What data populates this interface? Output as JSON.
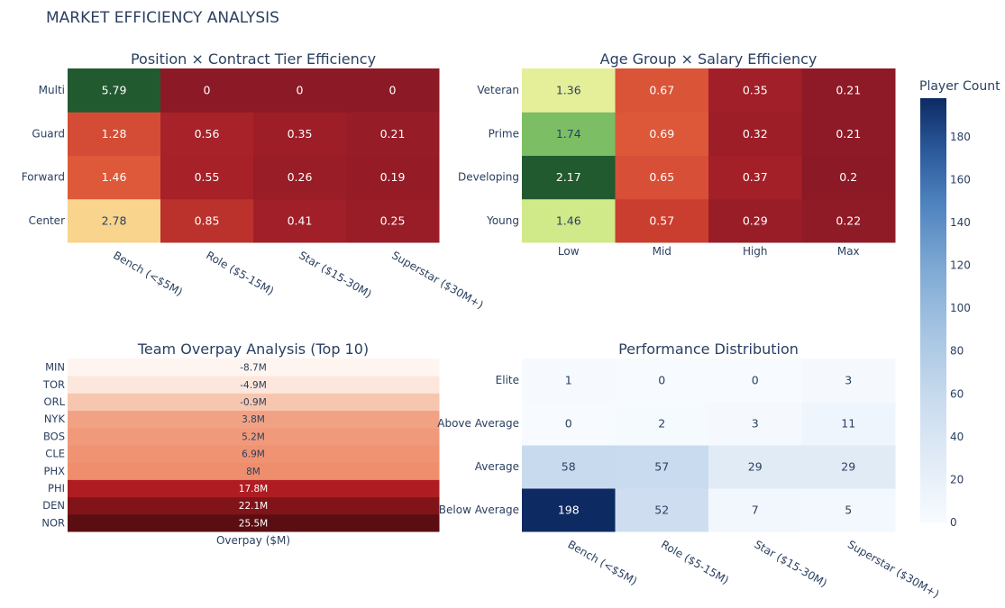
{
  "page": {
    "title": "MARKET EFFICIENCY ANALYSIS"
  },
  "chart_data": [
    {
      "id": "position_tier",
      "type": "heatmap",
      "title": "Position × Contract Tier Efficiency",
      "x": [
        "Bench (<$5M)",
        "Role ($5-15M)",
        "Star ($15-30M)",
        "Superstar ($30M+)"
      ],
      "y": [
        "Center",
        "Forward",
        "Guard",
        "Multi"
      ],
      "z": [
        [
          2.78,
          0.85,
          0.41,
          0.25
        ],
        [
          1.46,
          0.55,
          0.26,
          0.19
        ],
        [
          1.28,
          0.56,
          0.35,
          0.21
        ],
        [
          5.79,
          0,
          0,
          0
        ]
      ],
      "text": [
        [
          "2.78",
          "0.85",
          "0.41",
          "0.25"
        ],
        [
          "1.46",
          "0.55",
          "0.26",
          "0.19"
        ],
        [
          "1.28",
          "0.56",
          "0.35",
          "0.21"
        ],
        [
          "5.79",
          "0",
          "0",
          "0"
        ]
      ],
      "colorscale": "RdYlGn",
      "zrange": [
        0,
        5.79
      ]
    },
    {
      "id": "age_salary",
      "type": "heatmap",
      "title": "Age Group × Salary Efficiency",
      "x": [
        "Low",
        "Mid",
        "High",
        "Max"
      ],
      "y": [
        "Young",
        "Developing",
        "Prime",
        "Veteran"
      ],
      "z": [
        [
          1.46,
          0.57,
          0.29,
          0.22
        ],
        [
          2.17,
          0.65,
          0.37,
          0.2
        ],
        [
          1.74,
          0.69,
          0.32,
          0.21
        ],
        [
          1.36,
          0.67,
          0.35,
          0.21
        ]
      ],
      "text": [
        [
          "1.46",
          "0.57",
          "0.29",
          "0.22"
        ],
        [
          "2.17",
          "0.65",
          "0.37",
          "0.2"
        ],
        [
          "1.74",
          "0.69",
          "0.32",
          "0.21"
        ],
        [
          "1.36",
          "0.67",
          "0.35",
          "0.21"
        ]
      ],
      "colorscale": "RdYlGn",
      "zrange": [
        0.2,
        2.17
      ]
    },
    {
      "id": "team_overpay",
      "type": "heatmap",
      "title": "Team Overpay Analysis (Top 10)",
      "x": [
        "Overpay ($M)"
      ],
      "y": [
        "NOR",
        "DEN",
        "PHI",
        "PHX",
        "CLE",
        "BOS",
        "NYK",
        "ORL",
        "TOR",
        "MIN"
      ],
      "z": [
        [
          25.5
        ],
        [
          22.1
        ],
        [
          17.8
        ],
        [
          8
        ],
        [
          6.9
        ],
        [
          5.2
        ],
        [
          3.8
        ],
        [
          -0.9
        ],
        [
          -4.9
        ],
        [
          -8.7
        ]
      ],
      "text": [
        [
          "25.5M"
        ],
        [
          "22.1M"
        ],
        [
          "17.8M"
        ],
        [
          "8M"
        ],
        [
          "6.9M"
        ],
        [
          "5.2M"
        ],
        [
          "3.8M"
        ],
        [
          "-0.9M"
        ],
        [
          "-4.9M"
        ],
        [
          "-8.7M"
        ]
      ],
      "colorscale": "Reds",
      "zrange": [
        -8.7,
        25.5
      ]
    },
    {
      "id": "performance_distribution",
      "type": "heatmap",
      "title": "Performance Distribution",
      "x": [
        "Bench (<$5M)",
        "Role ($5-15M)",
        "Star ($15-30M)",
        "Superstar ($30M+)"
      ],
      "y": [
        "Below Average",
        "Average",
        "Above Average",
        "Elite"
      ],
      "z": [
        [
          198,
          52,
          7,
          5
        ],
        [
          58,
          57,
          29,
          29
        ],
        [
          0,
          2,
          3,
          11
        ],
        [
          1,
          0,
          0,
          3
        ]
      ],
      "text": [
        [
          "198",
          "52",
          "7",
          "5"
        ],
        [
          "58",
          "57",
          "29",
          "29"
        ],
        [
          "0",
          "2",
          "3",
          "11"
        ],
        [
          "1",
          "0",
          "0",
          "3"
        ]
      ],
      "colorscale": "Blues",
      "zrange": [
        0,
        198
      ],
      "colorbar": {
        "title": "Player Count",
        "ticks": [
          "0",
          "20",
          "40",
          "60",
          "80",
          "100",
          "120",
          "140",
          "160",
          "180"
        ]
      }
    }
  ]
}
